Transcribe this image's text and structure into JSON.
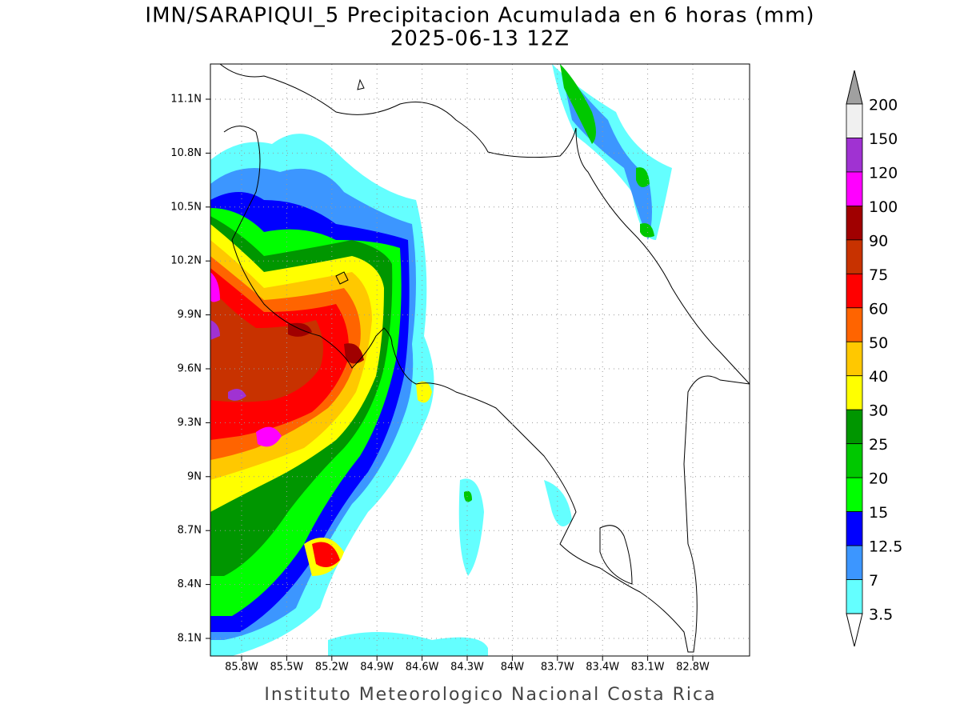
{
  "header": {
    "title": "IMN/SARAPIQUI_5 Precipitacion Acumulada en 6 horas (mm)",
    "subtitle": "2025-06-13 12Z"
  },
  "map": {
    "lon_labels": [
      "85.8W",
      "85.5W",
      "85.2W",
      "84.9W",
      "84.6W",
      "84.3W",
      "84W",
      "83.7W",
      "83.4W",
      "83.1W",
      "82.8W"
    ],
    "lat_labels": [
      "11.1N",
      "10.8N",
      "10.5N",
      "10.2N",
      "9.9N",
      "9.6N",
      "9.3N",
      "9N",
      "8.7N",
      "8.4N",
      "8.1N"
    ]
  },
  "legend": {
    "labels": [
      "200",
      "150",
      "120",
      "100",
      "90",
      "75",
      "60",
      "50",
      "40",
      "30",
      "25",
      "20",
      "15",
      "12.5",
      "7",
      "3.5"
    ],
    "colors": [
      "#f0f0f0",
      "#a032d2",
      "#ff00ff",
      "#a00000",
      "#c83200",
      "#ff0000",
      "#ff6400",
      "#ffc800",
      "#ffff00",
      "#009600",
      "#00c800",
      "#00ff00",
      "#0000ff",
      "#3c96ff",
      "#64ffff"
    ],
    "top_arrow_color": "#a0a0a0"
  },
  "footer": {
    "credit": "Instituto Meteorologico Nacional Costa Rica"
  }
}
